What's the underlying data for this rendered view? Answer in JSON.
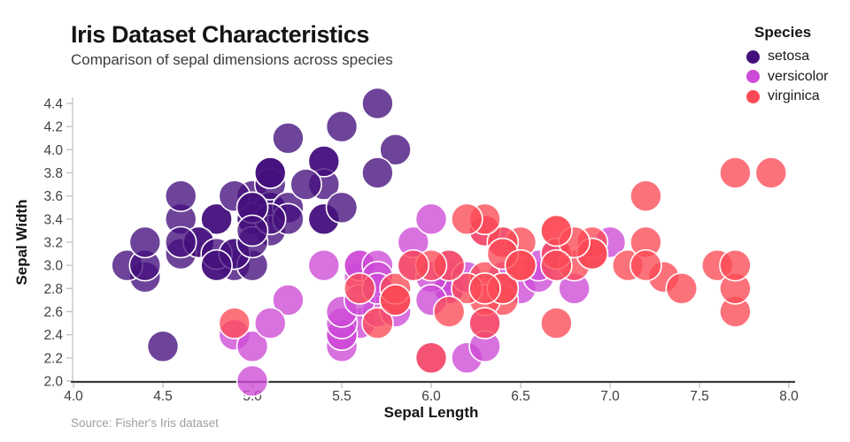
{
  "header": {
    "title": "Iris Dataset Characteristics",
    "subtitle": "Comparison of sepal dimensions across species"
  },
  "footer": {
    "source": "Source: Fisher's Iris dataset"
  },
  "legend": {
    "title": "Species"
  },
  "chart_data": {
    "type": "scatter",
    "title": "Iris Dataset Characteristics",
    "subtitle": "Comparison of sepal dimensions across species",
    "xlabel": "Sepal Length",
    "ylabel": "Sepal Width",
    "xlim": [
      4.0,
      8.0
    ],
    "ylim": [
      2.0,
      4.4
    ],
    "x_ticks": [
      "4.0",
      "4.5",
      "5.0",
      "5.5",
      "6.0",
      "6.5",
      "7.0",
      "7.5",
      "8.0"
    ],
    "y_ticks": [
      "2.0",
      "2.2",
      "2.4",
      "2.6",
      "2.8",
      "3.0",
      "3.2",
      "3.4",
      "3.6",
      "3.8",
      "4.0",
      "4.2",
      "4.4"
    ],
    "grid": false,
    "legend_position": "top-right",
    "marker": {
      "radius": 17.5,
      "fill_opacity": 0.78,
      "stroke": "#ffffff",
      "stroke_width": 1.6
    },
    "axis_colors": {
      "x_axis_line": "#3a3a3a",
      "y_axis_line": "#c9c9c9",
      "tick_mark": "#c4c4c4",
      "tick_label": "#3f3f3f"
    },
    "series": [
      {
        "name": "setosa",
        "color": "#440f7c",
        "points": [
          [
            5.1,
            3.5
          ],
          [
            4.9,
            3.0
          ],
          [
            4.7,
            3.2
          ],
          [
            4.6,
            3.1
          ],
          [
            5.0,
            3.6
          ],
          [
            5.4,
            3.9
          ],
          [
            4.6,
            3.4
          ],
          [
            5.0,
            3.4
          ],
          [
            4.4,
            2.9
          ],
          [
            4.9,
            3.1
          ],
          [
            5.4,
            3.7
          ],
          [
            4.8,
            3.4
          ],
          [
            4.8,
            3.0
          ],
          [
            4.3,
            3.0
          ],
          [
            5.8,
            4.0
          ],
          [
            5.7,
            4.4
          ],
          [
            5.4,
            3.9
          ],
          [
            5.1,
            3.5
          ],
          [
            5.7,
            3.8
          ],
          [
            5.1,
            3.8
          ],
          [
            5.4,
            3.4
          ],
          [
            5.1,
            3.7
          ],
          [
            4.6,
            3.6
          ],
          [
            5.1,
            3.3
          ],
          [
            4.8,
            3.4
          ],
          [
            5.0,
            3.0
          ],
          [
            5.0,
            3.4
          ],
          [
            5.2,
            3.5
          ],
          [
            5.2,
            3.4
          ],
          [
            4.7,
            3.2
          ],
          [
            4.8,
            3.1
          ],
          [
            5.4,
            3.4
          ],
          [
            5.2,
            4.1
          ],
          [
            5.5,
            4.2
          ],
          [
            4.9,
            3.1
          ],
          [
            5.0,
            3.2
          ],
          [
            5.5,
            3.5
          ],
          [
            4.9,
            3.6
          ],
          [
            4.4,
            3.0
          ],
          [
            5.1,
            3.4
          ],
          [
            5.0,
            3.5
          ],
          [
            4.5,
            2.3
          ],
          [
            4.4,
            3.2
          ],
          [
            5.0,
            3.5
          ],
          [
            5.1,
            3.8
          ],
          [
            4.8,
            3.0
          ],
          [
            5.1,
            3.8
          ],
          [
            4.6,
            3.2
          ],
          [
            5.3,
            3.7
          ],
          [
            5.0,
            3.3
          ]
        ]
      },
      {
        "name": "versicolor",
        "color": "#cd4ad6",
        "points": [
          [
            7.0,
            3.2
          ],
          [
            6.4,
            3.2
          ],
          [
            6.9,
            3.1
          ],
          [
            5.5,
            2.3
          ],
          [
            6.5,
            2.8
          ],
          [
            5.7,
            2.8
          ],
          [
            6.3,
            3.3
          ],
          [
            4.9,
            2.4
          ],
          [
            6.6,
            2.9
          ],
          [
            5.2,
            2.7
          ],
          [
            5.0,
            2.0
          ],
          [
            5.9,
            3.0
          ],
          [
            6.0,
            2.2
          ],
          [
            6.1,
            2.9
          ],
          [
            5.6,
            2.9
          ],
          [
            6.7,
            3.1
          ],
          [
            5.6,
            3.0
          ],
          [
            5.8,
            2.7
          ],
          [
            6.2,
            2.2
          ],
          [
            5.6,
            2.5
          ],
          [
            5.9,
            3.2
          ],
          [
            6.1,
            2.8
          ],
          [
            6.3,
            2.5
          ],
          [
            6.1,
            2.8
          ],
          [
            6.4,
            2.9
          ],
          [
            6.6,
            3.0
          ],
          [
            6.8,
            2.8
          ],
          [
            6.7,
            3.0
          ],
          [
            6.0,
            2.9
          ],
          [
            5.7,
            2.6
          ],
          [
            5.5,
            2.4
          ],
          [
            5.5,
            2.4
          ],
          [
            5.8,
            2.7
          ],
          [
            6.0,
            2.7
          ],
          [
            5.4,
            3.0
          ],
          [
            6.0,
            3.4
          ],
          [
            6.7,
            3.1
          ],
          [
            6.3,
            2.3
          ],
          [
            5.6,
            3.0
          ],
          [
            5.5,
            2.5
          ],
          [
            5.5,
            2.6
          ],
          [
            6.1,
            3.0
          ],
          [
            5.8,
            2.6
          ],
          [
            5.0,
            2.3
          ],
          [
            5.6,
            2.7
          ],
          [
            5.7,
            3.0
          ],
          [
            5.7,
            2.9
          ],
          [
            6.2,
            2.9
          ],
          [
            5.1,
            2.5
          ],
          [
            5.7,
            2.8
          ]
        ]
      },
      {
        "name": "virginica",
        "color": "#fb4a56",
        "points": [
          [
            6.3,
            3.3
          ],
          [
            5.8,
            2.7
          ],
          [
            7.1,
            3.0
          ],
          [
            6.3,
            2.9
          ],
          [
            6.5,
            3.0
          ],
          [
            7.6,
            3.0
          ],
          [
            4.9,
            2.5
          ],
          [
            7.3,
            2.9
          ],
          [
            6.7,
            2.5
          ],
          [
            7.2,
            3.6
          ],
          [
            6.5,
            3.2
          ],
          [
            6.4,
            2.7
          ],
          [
            6.8,
            3.0
          ],
          [
            5.7,
            2.5
          ],
          [
            5.8,
            2.8
          ],
          [
            6.4,
            3.2
          ],
          [
            6.5,
            3.0
          ],
          [
            7.7,
            3.8
          ],
          [
            7.7,
            2.6
          ],
          [
            6.0,
            2.2
          ],
          [
            6.9,
            3.2
          ],
          [
            5.6,
            2.8
          ],
          [
            7.7,
            2.8
          ],
          [
            6.3,
            2.7
          ],
          [
            6.7,
            3.3
          ],
          [
            7.2,
            3.2
          ],
          [
            6.2,
            2.8
          ],
          [
            6.1,
            3.0
          ],
          [
            6.4,
            2.8
          ],
          [
            7.2,
            3.0
          ],
          [
            7.4,
            2.8
          ],
          [
            7.9,
            3.8
          ],
          [
            6.4,
            2.8
          ],
          [
            6.3,
            2.8
          ],
          [
            6.1,
            2.6
          ],
          [
            7.7,
            3.0
          ],
          [
            6.3,
            3.4
          ],
          [
            6.4,
            3.1
          ],
          [
            6.0,
            3.0
          ],
          [
            6.9,
            3.1
          ],
          [
            6.7,
            3.1
          ],
          [
            6.9,
            3.1
          ],
          [
            5.8,
            2.7
          ],
          [
            6.8,
            3.2
          ],
          [
            6.7,
            3.3
          ],
          [
            6.7,
            3.0
          ],
          [
            6.3,
            2.5
          ],
          [
            6.5,
            3.0
          ],
          [
            6.2,
            3.4
          ],
          [
            5.9,
            3.0
          ]
        ]
      }
    ]
  }
}
